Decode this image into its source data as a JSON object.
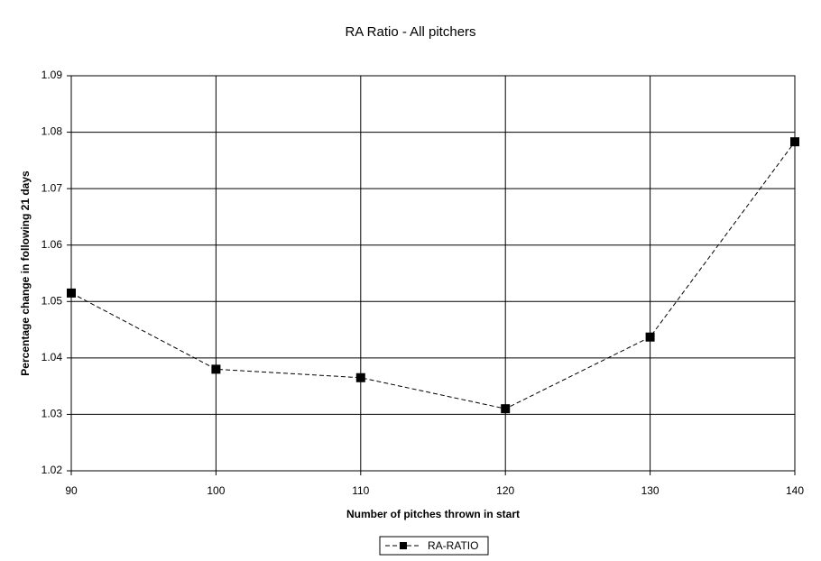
{
  "chart_data": {
    "type": "line",
    "title": "RA Ratio - All pitchers",
    "x_label": "Number of pitches thrown in start",
    "y_label": "Percentage change in following 21 days",
    "x": [
      90,
      100,
      110,
      120,
      130,
      140
    ],
    "series": [
      {
        "name": "RA-RATIO",
        "color": "#000000",
        "values": [
          1.0515,
          1.038,
          1.0365,
          1.031,
          1.0437,
          1.0783
        ]
      }
    ],
    "xlim": [
      90,
      140
    ],
    "xticks": [
      90,
      100,
      110,
      120,
      130,
      140
    ],
    "ylim": [
      1.02,
      1.09
    ],
    "yticks": [
      1.02,
      1.03,
      1.04,
      1.05,
      1.06,
      1.07,
      1.08,
      1.09
    ],
    "grid": true,
    "legend": "bottom"
  }
}
